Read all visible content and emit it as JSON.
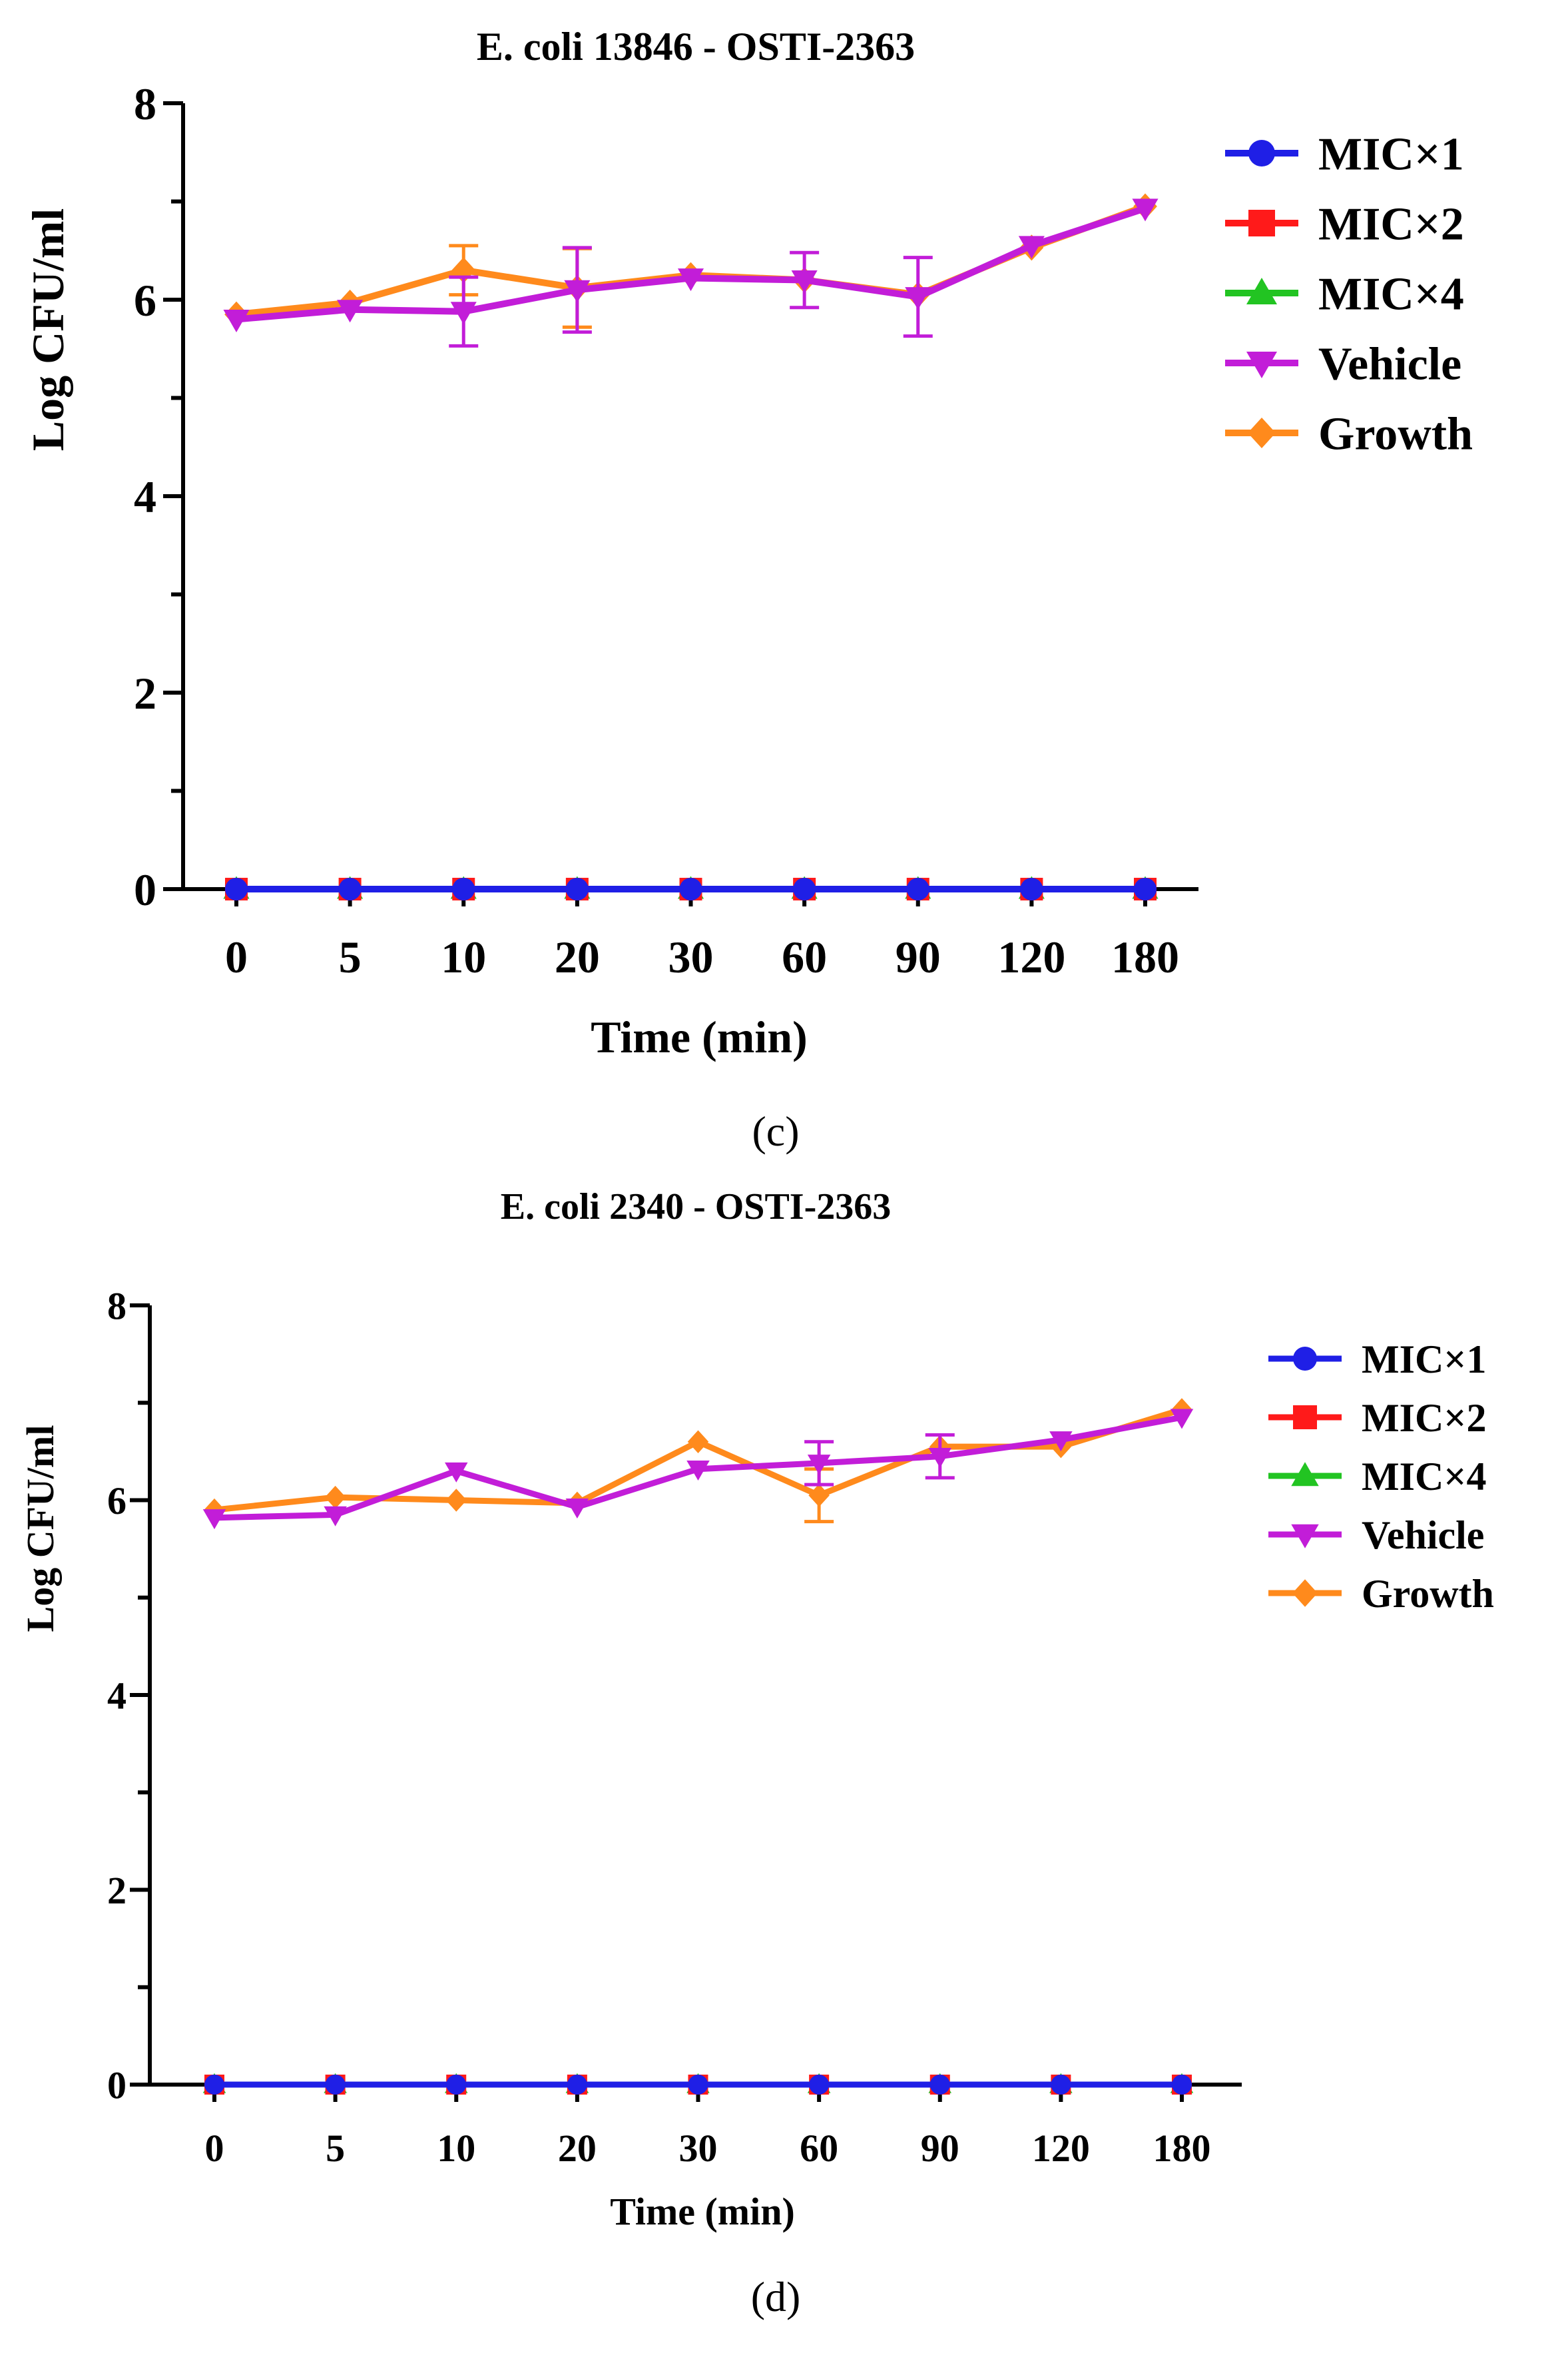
{
  "colors": {
    "MIC×1": "#1f1fe6",
    "MIC×2": "#ff1a1a",
    "MIC×4": "#22c422",
    "Vehicle": "#c21dd8",
    "Growth": "#ff8a1c"
  },
  "chart_data": [
    {
      "type": "line",
      "title": "E. coli 13846 - OSTI-2363",
      "caption": "(c)",
      "xlabel": "Time (min)",
      "ylabel": "Log CFU/ml",
      "categories": [
        "0",
        "5",
        "10",
        "20",
        "30",
        "60",
        "90",
        "120",
        "180"
      ],
      "ylim": [
        0,
        8
      ],
      "yticks": [
        "0",
        "2",
        "4",
        "6",
        "8"
      ],
      "legend_position": "right",
      "series": [
        {
          "name": "MIC×1",
          "marker": "circle",
          "values": [
            0,
            0,
            0,
            0,
            0,
            0,
            0,
            0,
            0
          ]
        },
        {
          "name": "MIC×2",
          "marker": "square",
          "values": [
            0,
            0,
            0,
            0,
            0,
            0,
            0,
            0,
            0
          ]
        },
        {
          "name": "MIC×4",
          "marker": "triangle-up",
          "values": [
            0,
            0,
            0,
            0,
            0,
            0,
            0,
            0,
            0
          ]
        },
        {
          "name": "Growth",
          "marker": "diamond",
          "values": [
            5.85,
            5.97,
            6.3,
            6.12,
            6.25,
            6.2,
            6.05,
            6.53,
            6.95
          ],
          "errors": [
            0.0,
            0.0,
            0.25,
            0.4,
            0.0,
            0.0,
            0.0,
            0.0,
            0.0
          ]
        },
        {
          "name": "Vehicle",
          "marker": "triangle-down",
          "values": [
            5.8,
            5.9,
            5.88,
            6.1,
            6.22,
            6.2,
            6.03,
            6.55,
            6.93
          ],
          "errors": [
            0.0,
            0.0,
            0.35,
            0.43,
            0.0,
            0.28,
            0.4,
            0.0,
            0.0
          ]
        }
      ]
    },
    {
      "type": "line",
      "title": "E. coli 2340 - OSTI-2363",
      "caption": "(d)",
      "xlabel": "Time (min)",
      "ylabel": "Log CFU/ml",
      "categories": [
        "0",
        "5",
        "10",
        "20",
        "30",
        "60",
        "90",
        "120",
        "180"
      ],
      "ylim": [
        0,
        8
      ],
      "yticks": [
        "0",
        "2",
        "4",
        "6",
        "8"
      ],
      "legend_position": "right",
      "series": [
        {
          "name": "MIC×1",
          "marker": "circle",
          "values": [
            0,
            0,
            0,
            0,
            0,
            0,
            0,
            0,
            0
          ]
        },
        {
          "name": "MIC×2",
          "marker": "square",
          "values": [
            0,
            0,
            0,
            0,
            0,
            0,
            0,
            0,
            0
          ]
        },
        {
          "name": "MIC×4",
          "marker": "triangle-up",
          "values": [
            0,
            0,
            0,
            0,
            0,
            0,
            0,
            0,
            0
          ]
        },
        {
          "name": "Growth",
          "marker": "diamond",
          "values": [
            5.9,
            6.03,
            6.0,
            5.97,
            6.6,
            6.05,
            6.55,
            6.55,
            6.93
          ],
          "errors": [
            0.0,
            0.0,
            0.0,
            0.0,
            0.0,
            0.27,
            0.0,
            0.0,
            0.0
          ]
        },
        {
          "name": "Vehicle",
          "marker": "triangle-down",
          "values": [
            5.82,
            5.85,
            6.3,
            5.93,
            6.32,
            6.38,
            6.45,
            6.62,
            6.85
          ],
          "errors": [
            0.0,
            0.0,
            0.0,
            0.0,
            0.0,
            0.22,
            0.22,
            0.0,
            0.0
          ]
        }
      ]
    }
  ]
}
